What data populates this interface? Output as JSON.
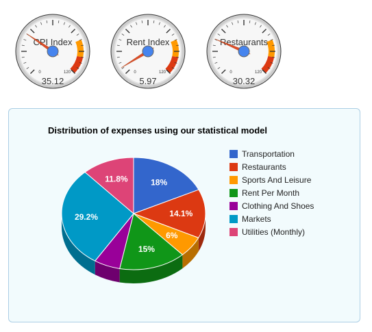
{
  "gauges": [
    {
      "label": "CPI Index",
      "value_text": "35.12",
      "value": 35.12
    },
    {
      "label": "Rent Index",
      "value_text": "5.97",
      "value": 5.97
    },
    {
      "label": "Restaurants",
      "value_text": "30.32",
      "value": 30.32
    }
  ],
  "gauge_scale": {
    "min_label": "0",
    "max_label": "120",
    "min": 0,
    "max": 120,
    "yellow_from": 90,
    "red_from": 105
  },
  "chart": {
    "title": "Distribution of expenses using our statistical model"
  },
  "chart_data": {
    "type": "pie",
    "title": "Distribution of expenses using our statistical model",
    "categories": [
      "Transportation",
      "Restaurants",
      "Sports And Leisure",
      "Rent Per Month",
      "Clothing And Shoes",
      "Markets",
      "Utilities (Monthly)"
    ],
    "values": [
      18,
      14.1,
      6,
      15,
      5.9,
      29.2,
      11.8
    ],
    "labels": [
      "18%",
      "14.1%",
      "6%",
      "15%",
      "",
      "29.2%",
      "11.8%"
    ],
    "colors": [
      "#3366cc",
      "#dc3912",
      "#ff9900",
      "#109618",
      "#990099",
      "#0099c6",
      "#dd4477"
    ],
    "legend_position": "right",
    "is3D": true
  }
}
